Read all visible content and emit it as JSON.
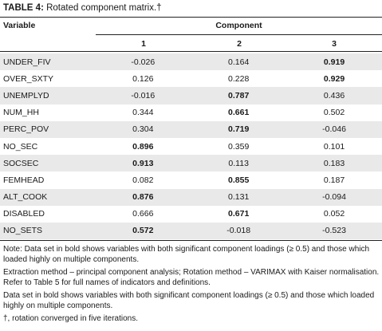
{
  "caption": {
    "label": "TABLE 4:",
    "text": " Rotated component matrix.†"
  },
  "header": {
    "variable": "Variable",
    "component": "Component",
    "columns": [
      "1",
      "2",
      "3"
    ]
  },
  "rows": [
    {
      "name": "UNDER_FIV",
      "values": [
        "-0.026",
        "0.164",
        "0.919"
      ],
      "bold": [
        false,
        false,
        true
      ]
    },
    {
      "name": "OVER_SXTY",
      "values": [
        "0.126",
        "0.228",
        "0.929"
      ],
      "bold": [
        false,
        false,
        true
      ]
    },
    {
      "name": "UNEMPLYD",
      "values": [
        "-0.016",
        "0.787",
        "0.436"
      ],
      "bold": [
        false,
        true,
        false
      ]
    },
    {
      "name": "NUM_HH",
      "values": [
        "0.344",
        "0.661",
        "0.502"
      ],
      "bold": [
        false,
        true,
        false
      ]
    },
    {
      "name": "PERC_POV",
      "values": [
        "0.304",
        "0.719",
        "-0.046"
      ],
      "bold": [
        false,
        true,
        false
      ]
    },
    {
      "name": "NO_SEC",
      "values": [
        "0.896",
        "0.359",
        "0.101"
      ],
      "bold": [
        true,
        false,
        false
      ]
    },
    {
      "name": "SOCSEC",
      "values": [
        "0.913",
        "0.113",
        "0.183"
      ],
      "bold": [
        true,
        false,
        false
      ]
    },
    {
      "name": "FEMHEAD",
      "values": [
        "0.082",
        "0.855",
        "0.187"
      ],
      "bold": [
        false,
        true,
        false
      ]
    },
    {
      "name": "ALT_COOK",
      "values": [
        "0.876",
        "0.131",
        "-0.094"
      ],
      "bold": [
        true,
        false,
        false
      ]
    },
    {
      "name": "DISABLED",
      "values": [
        "0.666",
        "0.671",
        "0.052"
      ],
      "bold": [
        false,
        true,
        false
      ]
    },
    {
      "name": "NO_SETS",
      "values": [
        "0.572",
        "-0.018",
        "-0.523"
      ],
      "bold": [
        true,
        false,
        false
      ]
    }
  ],
  "notes": [
    "Note: Data set in bold shows variables with both significant component loadings (≥ 0.5) and those which loaded highly on multiple components.",
    "Extraction method – principal component analysis; Rotation method – VARIMAX with Kaiser normalisation. Refer to Table 5 for full names of indicators and definitions.",
    "Data set in bold shows variables with both significant component loadings (≥ 0.5) and those which loaded highly on multiple components.",
    "†, rotation converged in five iterations."
  ],
  "colors": {
    "shade": "#e9e9e9",
    "rule": "#222222",
    "text": "#1a1a1a"
  }
}
